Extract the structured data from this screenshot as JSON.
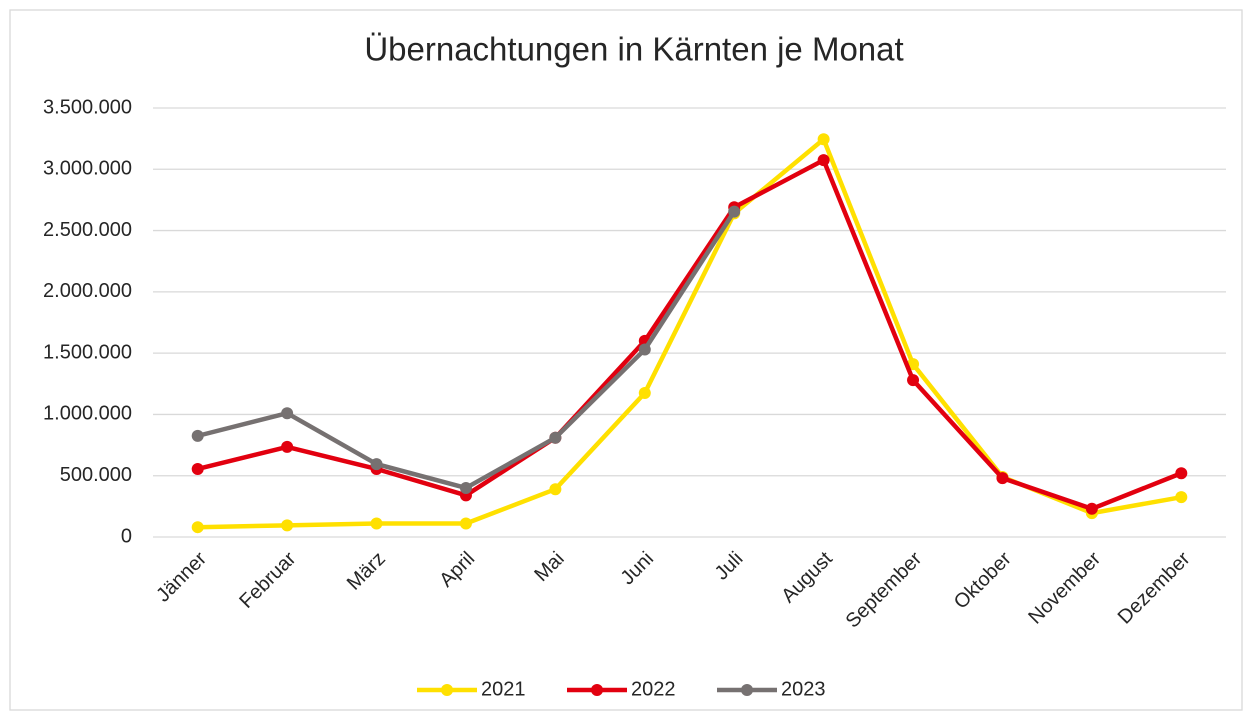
{
  "chart_data": {
    "type": "line",
    "title": "Übernachtungen in Kärnten je Monat",
    "categories": [
      "Jänner",
      "Februar",
      "März",
      "April",
      "Mai",
      "Juni",
      "Juli",
      "August",
      "September",
      "Oktober",
      "November",
      "Dezember"
    ],
    "series": [
      {
        "name": "2021",
        "color": "#ffe000",
        "values": [
          80000,
          95000,
          110000,
          110000,
          390000,
          1175000,
          2640000,
          3245000,
          1410000,
          490000,
          195000,
          325000
        ]
      },
      {
        "name": "2022",
        "color": "#e2000f",
        "values": [
          555000,
          735000,
          555000,
          340000,
          810000,
          1600000,
          2690000,
          3075000,
          1280000,
          480000,
          230000,
          520000
        ]
      },
      {
        "name": "2023",
        "color": "#767171",
        "values": [
          825000,
          1010000,
          595000,
          400000,
          810000,
          1530000,
          2655000,
          null,
          null,
          null,
          null,
          null
        ]
      }
    ],
    "ylim": [
      0,
      3500000
    ],
    "yticks": [
      0,
      {
        "value": 500000,
        "label": "500.000"
      },
      {
        "value": 1000000,
        "label": "1.000.000"
      },
      {
        "value": 1500000,
        "label": "1.500.000"
      },
      {
        "value": 2000000,
        "label": "2.000.000"
      },
      {
        "value": 2500000,
        "label": "2.500.000"
      },
      {
        "value": 3000000,
        "label": "3.000.000"
      },
      {
        "value": 3500000,
        "label": "3.500.000"
      }
    ],
    "grid": true,
    "legend": "bottom"
  }
}
